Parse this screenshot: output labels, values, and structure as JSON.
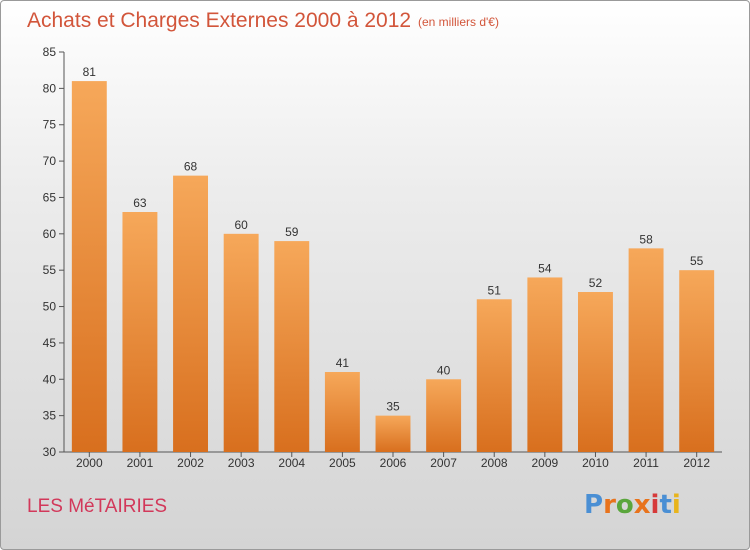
{
  "header": {
    "title": "Achats et Charges Externes 2000 à 2012",
    "unit": "(en milliers d'€)"
  },
  "footer": {
    "commune": "LES MéTAIRIES",
    "logo": "Proxiti"
  },
  "colors": {
    "title": "#d2553a",
    "commune": "#d2385a",
    "bar_top": "#f6a85a",
    "bar_bottom": "#d86f1e",
    "logo_letters": [
      "#4a8fd4",
      "#e8731c",
      "#5aa63c",
      "#e8731c",
      "#d63a3a",
      "#4a8fd4",
      "#e8b41c"
    ]
  },
  "chart_data": {
    "type": "bar",
    "title": "Achats et Charges Externes 2000 à 2012",
    "categories": [
      "2000",
      "2001",
      "2002",
      "2003",
      "2004",
      "2005",
      "2006",
      "2007",
      "2008",
      "2009",
      "2010",
      "2011",
      "2012"
    ],
    "values": [
      81,
      63,
      68,
      60,
      59,
      41,
      35,
      40,
      51,
      54,
      52,
      58,
      55
    ],
    "ylim": [
      30,
      85
    ],
    "yticks": [
      30,
      35,
      40,
      45,
      50,
      55,
      60,
      65,
      70,
      75,
      80,
      85
    ],
    "xlabel": "",
    "ylabel": "",
    "grid": false
  }
}
